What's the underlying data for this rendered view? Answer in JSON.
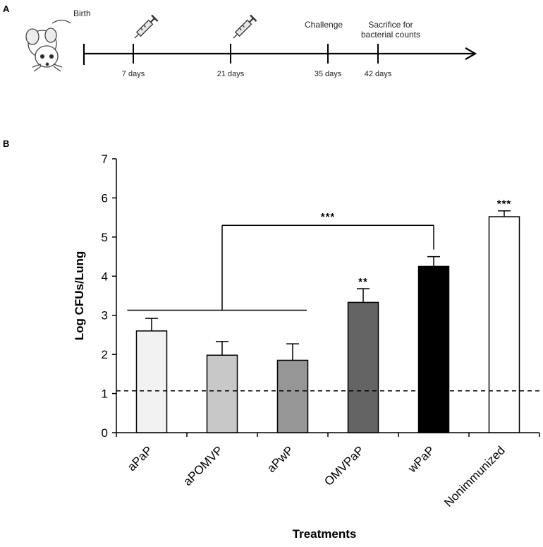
{
  "panel_a": {
    "label": "A",
    "birth_label": "Birth",
    "challenge_label": "Challenge",
    "sacrifice_label_line1": "Sacrifice for",
    "sacrifice_label_line2": "bacterial counts",
    "days": [
      "7 days",
      "21 days",
      "35 days",
      "42 days"
    ],
    "icons": [
      "mouse-icon",
      "syringe-icon"
    ]
  },
  "panel_b": {
    "label": "B"
  },
  "chart_data": {
    "type": "bar",
    "title": "",
    "xlabel": "Treatments",
    "ylabel": "Log CFUs/Lung",
    "ylim": [
      0,
      7
    ],
    "yticks": [
      0,
      1,
      2,
      3,
      4,
      5,
      6,
      7
    ],
    "grid": false,
    "categories": [
      "aPaP",
      "aPOMVP",
      "aPwP",
      "OMVPaP",
      "wPaP",
      "Nonimmunized"
    ],
    "values": [
      2.6,
      1.98,
      1.85,
      3.33,
      4.25,
      5.52
    ],
    "errors": [
      0.32,
      0.35,
      0.42,
      0.35,
      0.25,
      0.15
    ],
    "colors": [
      "#f2f2f2",
      "#c8c8c8",
      "#969696",
      "#646464",
      "#000000",
      "#ffffff"
    ],
    "bar_stars": [
      "",
      "",
      "",
      "**",
      "",
      "***"
    ],
    "detection_limit": 1.07,
    "bracket": {
      "label": "***",
      "group": [
        "aPaP",
        "aPOMVP",
        "aPwP"
      ],
      "target": "wPaP",
      "y_group": 3.13,
      "y_top": 5.3
    }
  }
}
